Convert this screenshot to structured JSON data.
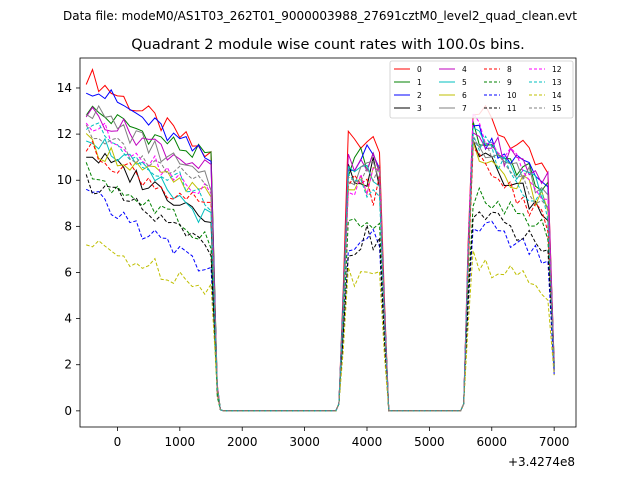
{
  "chart_data": {
    "type": "line",
    "suptitle": "Data file: modeM0/AS1T03_262T01_9000003988_27691cztM0_level2_quad_clean.evt",
    "title": "Quadrant 2 module wise count rates with 100.0s bins.",
    "xlabel": "",
    "ylabel": "",
    "x_offset_label": "+3.4274e8",
    "xlim": [
      -600,
      7350
    ],
    "ylim": [
      -0.7,
      15.3
    ],
    "x_ticks": [
      0,
      1000,
      2000,
      3000,
      4000,
      5000,
      6000,
      7000
    ],
    "y_ticks": [
      0,
      2,
      4,
      6,
      8,
      10,
      12,
      14
    ],
    "legend_location": "top-right",
    "segments": [
      {
        "start": -500,
        "end": 1500
      },
      {
        "start": 3700,
        "end": 4200
      },
      {
        "start": 5700,
        "end": 6900
      }
    ],
    "series": [
      {
        "name": "0",
        "color": "#ff0000",
        "dashed": false,
        "levels": [
          14.6,
          11.0,
          11.9,
          13.2,
          10.2
        ]
      },
      {
        "name": "1",
        "color": "#008000",
        "dashed": false,
        "levels": [
          13.1,
          10.9,
          10.8,
          12.1,
          9.6
        ]
      },
      {
        "name": "2",
        "color": "#0000ff",
        "dashed": false,
        "levels": [
          14.2,
          10.8,
          11.0,
          12.3,
          9.8
        ]
      },
      {
        "name": "3",
        "color": "#000000",
        "dashed": false,
        "levels": [
          11.2,
          8.5,
          10.3,
          11.4,
          8.4
        ]
      },
      {
        "name": "4",
        "color": "#bf00bf",
        "dashed": false,
        "levels": [
          13.0,
          10.4,
          10.5,
          12.0,
          10.0
        ]
      },
      {
        "name": "5",
        "color": "#00bfbf",
        "dashed": false,
        "levels": [
          12.1,
          8.2,
          10.2,
          11.8,
          9.3
        ]
      },
      {
        "name": "6",
        "color": "#bfbf00",
        "dashed": false,
        "levels": [
          11.6,
          9.2,
          10.0,
          11.3,
          8.9
        ]
      },
      {
        "name": "7",
        "color": "#808080",
        "dashed": false,
        "levels": [
          13.2,
          9.8,
          10.4,
          11.9,
          9.5
        ]
      },
      {
        "name": "8",
        "color": "#ff0000",
        "dashed": true,
        "levels": [
          11.4,
          8.6,
          9.6,
          11.0,
          8.3
        ]
      },
      {
        "name": "9",
        "color": "#008000",
        "dashed": true,
        "levels": [
          10.4,
          7.4,
          8.0,
          9.3,
          7.8
        ]
      },
      {
        "name": "10",
        "color": "#0000ff",
        "dashed": true,
        "levels": [
          9.4,
          6.0,
          7.2,
          8.3,
          6.3
        ]
      },
      {
        "name": "11",
        "color": "#000000",
        "dashed": true,
        "levels": [
          10.0,
          7.0,
          7.4,
          8.6,
          7.0
        ]
      },
      {
        "name": "12",
        "color": "#ff00ff",
        "dashed": true,
        "levels": [
          12.5,
          9.4,
          10.0,
          12.6,
          9.2
        ]
      },
      {
        "name": "13",
        "color": "#00bfbf",
        "dashed": true,
        "levels": [
          12.4,
          9.1,
          9.8,
          12.1,
          8.8
        ]
      },
      {
        "name": "14",
        "color": "#bfbf00",
        "dashed": true,
        "levels": [
          7.2,
          5.4,
          5.9,
          6.7,
          5.1
        ]
      },
      {
        "name": "15",
        "color": "#808080",
        "dashed": true,
        "levels": [
          12.3,
          9.5,
          10.1,
          11.8,
          9.0
        ]
      }
    ]
  }
}
